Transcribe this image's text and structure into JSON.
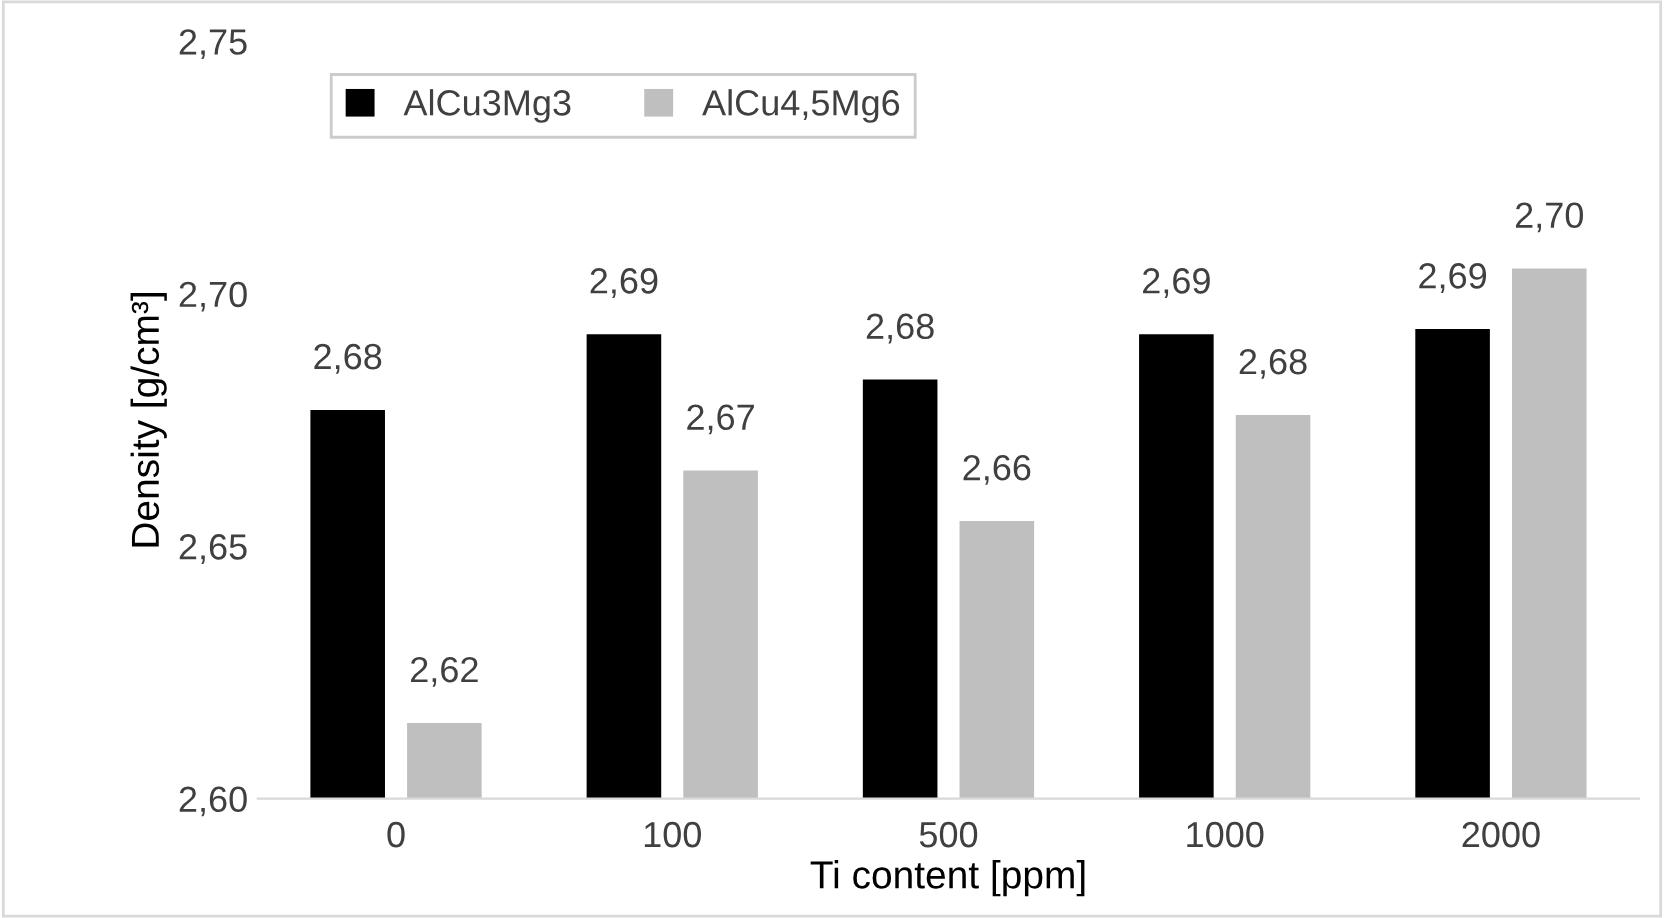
{
  "chart_data": {
    "type": "bar",
    "xlabel": "Ti content [ppm]",
    "ylabel": "Density [g/cm³]",
    "categories": [
      "0",
      "100",
      "500",
      "1000",
      "2000"
    ],
    "series": [
      {
        "name": "AlCu3Mg3",
        "color": "#000000",
        "values": [
          2.677,
          2.692,
          2.683,
          2.692,
          2.693
        ],
        "value_labels": [
          "2,68",
          "2,69",
          "2,68",
          "2,69",
          "2,69"
        ]
      },
      {
        "name": "AlCu4,5Mg6",
        "color": "#bfbfbf",
        "values": [
          2.615,
          2.665,
          2.655,
          2.676,
          2.705
        ],
        "value_labels": [
          "2,62",
          "2,67",
          "2,66",
          "2,68",
          "2,70"
        ]
      }
    ],
    "ylim": [
      2.6,
      2.75
    ],
    "yticks": [
      {
        "value": 2.6,
        "label": "2,60"
      },
      {
        "value": 2.65,
        "label": "2,65"
      },
      {
        "value": 2.7,
        "label": "2,70"
      },
      {
        "value": 2.75,
        "label": "2,75"
      }
    ],
    "grid": false,
    "legend": "top left"
  }
}
